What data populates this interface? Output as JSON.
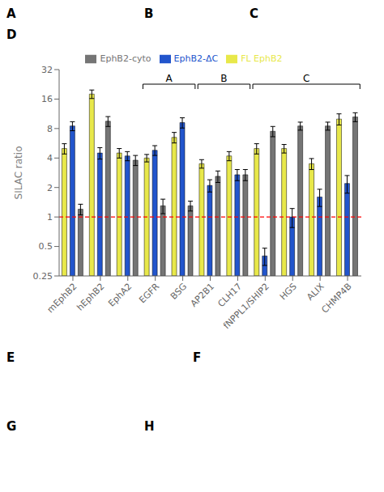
{
  "chart_data": {
    "type": "bar",
    "title": "D",
    "y_label": "SILAC ratio",
    "categories": [
      "mEphB2",
      "hEphB2",
      "EphA2",
      "EGFR",
      "BSG",
      "AP2B1",
      "CLH17",
      "fNPPL1/SHIP2",
      "HGS",
      "ALIX",
      "CHMP4B"
    ],
    "series": [
      {
        "name": "FL EphB2",
        "color": "#e8e84a",
        "values": [
          5.0,
          18.0,
          4.5,
          4.0,
          6.5,
          3.5,
          4.2,
          5.0,
          5.0,
          3.5,
          10.0
        ],
        "errors": [
          0.6,
          1.8,
          0.5,
          0.35,
          0.8,
          0.35,
          0.45,
          0.6,
          0.5,
          0.45,
          1.3
        ]
      },
      {
        "name": "EphB2-ΔC",
        "color": "#2255cc",
        "values": [
          8.5,
          4.5,
          4.2,
          4.8,
          9.2,
          2.1,
          2.7,
          0.4,
          1.0,
          1.6,
          2.2
        ],
        "errors": [
          0.9,
          0.6,
          0.45,
          0.55,
          1.1,
          0.3,
          0.35,
          0.08,
          0.22,
          0.32,
          0.45
        ]
      },
      {
        "name": "EphB2-cyto",
        "color": "#757575",
        "values": [
          1.2,
          9.5,
          3.8,
          1.3,
          1.3,
          2.6,
          2.7,
          7.5,
          8.5,
          8.5,
          10.5
        ],
        "errors": [
          0.15,
          1.1,
          0.45,
          0.22,
          0.15,
          0.35,
          0.35,
          0.9,
          0.8,
          0.8,
          1.1
        ]
      }
    ],
    "log": "y",
    "ylim": [
      0.25,
      32
    ],
    "yticks": [
      0.25,
      0.5,
      1,
      2,
      4,
      8,
      16,
      32
    ],
    "grid": false,
    "legend": "top",
    "annotations": [
      {
        "y": 1.0,
        "color": "red",
        "line_style": "dashed"
      },
      {
        "text": "A",
        "from": "EGFR",
        "to": "BSG"
      },
      {
        "text": "B",
        "from": "AP2B1",
        "to": "CLH17"
      },
      {
        "text": "C",
        "from": "fNPPL1/SHIP2",
        "to": "CHMP4B"
      },
      {
        "text": "A"
      },
      {
        "text": "B"
      },
      {
        "text": "C"
      },
      {
        "text": "E"
      },
      {
        "text": "F"
      },
      {
        "text": "G"
      },
      {
        "text": "H"
      }
    ]
  }
}
